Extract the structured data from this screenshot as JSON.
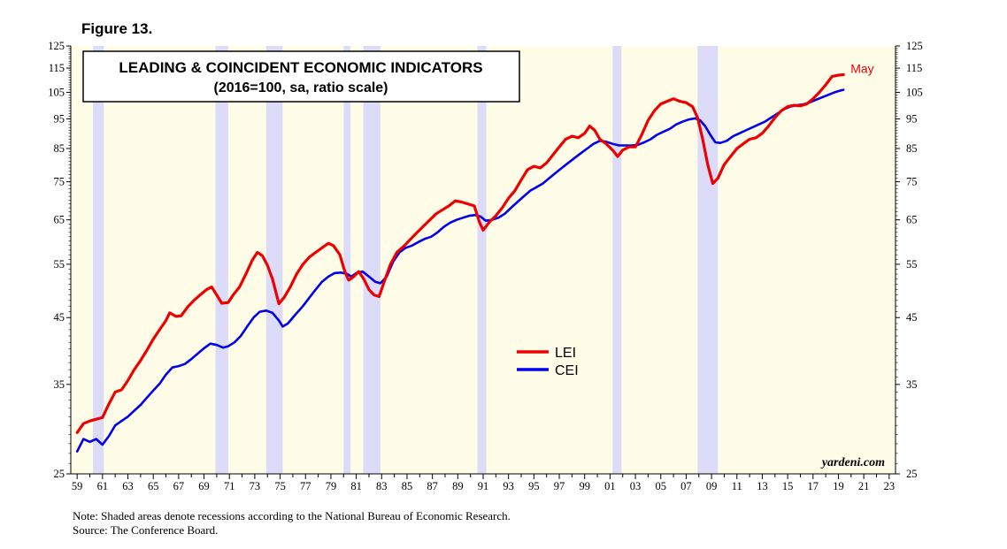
{
  "figure_label": "Figure 13.",
  "notes": {
    "line1": "Note: Shaded areas denote recessions according to the National Bureau of Economic Research.",
    "line2": "Source: The Conference Board."
  },
  "chart_data": {
    "type": "line",
    "title": "LEADING & COINCIDENT ECONOMIC INDICATORS",
    "subtitle": "(2016=100, sa, ratio scale)",
    "y_scale": "log",
    "ylim": [
      25,
      125
    ],
    "xlim": [
      1958.5,
      2023.5
    ],
    "y_ticks": [
      25,
      35,
      45,
      55,
      65,
      75,
      85,
      95,
      105,
      115,
      125
    ],
    "x_tick_labels": [
      "59",
      "61",
      "63",
      "65",
      "67",
      "69",
      "71",
      "73",
      "75",
      "77",
      "79",
      "81",
      "83",
      "85",
      "87",
      "89",
      "91",
      "93",
      "95",
      "97",
      "99",
      "01",
      "03",
      "05",
      "07",
      "09",
      "11",
      "13",
      "15",
      "17",
      "19",
      "21",
      "23"
    ],
    "recessions": [
      [
        1960.25,
        1961.1
      ],
      [
        1969.9,
        1970.9
      ],
      [
        1973.9,
        1975.2
      ],
      [
        1980.0,
        1980.55
      ],
      [
        1981.55,
        1982.9
      ],
      [
        1990.55,
        1991.25
      ],
      [
        2001.2,
        2001.9
      ],
      [
        2007.9,
        2009.5
      ]
    ],
    "series": [
      {
        "name": "LEI",
        "color": "#ee0000",
        "end_label": "May",
        "points": [
          [
            1959.0,
            29.2
          ],
          [
            1959.5,
            30.2
          ],
          [
            1960.0,
            30.5
          ],
          [
            1960.5,
            30.7
          ],
          [
            1961.0,
            30.9
          ],
          [
            1961.5,
            32.5
          ],
          [
            1962.0,
            34.0
          ],
          [
            1962.5,
            34.3
          ],
          [
            1963.0,
            35.5
          ],
          [
            1963.5,
            37.0
          ],
          [
            1964.0,
            38.3
          ],
          [
            1964.5,
            39.8
          ],
          [
            1965.0,
            41.5
          ],
          [
            1965.5,
            43.0
          ],
          [
            1966.0,
            44.5
          ],
          [
            1966.3,
            45.8
          ],
          [
            1966.8,
            45.2
          ],
          [
            1967.2,
            45.3
          ],
          [
            1967.7,
            46.8
          ],
          [
            1968.2,
            48.0
          ],
          [
            1968.7,
            49.0
          ],
          [
            1969.2,
            50.0
          ],
          [
            1969.6,
            50.5
          ],
          [
            1970.0,
            49.0
          ],
          [
            1970.4,
            47.5
          ],
          [
            1970.9,
            47.6
          ],
          [
            1971.3,
            49.0
          ],
          [
            1971.8,
            50.5
          ],
          [
            1972.3,
            53.0
          ],
          [
            1972.8,
            55.8
          ],
          [
            1973.2,
            57.5
          ],
          [
            1973.6,
            56.8
          ],
          [
            1974.0,
            54.8
          ],
          [
            1974.4,
            52.0
          ],
          [
            1974.9,
            47.4
          ],
          [
            1975.3,
            48.5
          ],
          [
            1975.8,
            50.5
          ],
          [
            1976.3,
            53.0
          ],
          [
            1976.8,
            55.0
          ],
          [
            1977.3,
            56.5
          ],
          [
            1977.8,
            57.5
          ],
          [
            1978.3,
            58.5
          ],
          [
            1978.8,
            59.5
          ],
          [
            1979.2,
            59.0
          ],
          [
            1979.7,
            57.0
          ],
          [
            1980.1,
            53.5
          ],
          [
            1980.4,
            51.8
          ],
          [
            1980.8,
            52.5
          ],
          [
            1981.2,
            53.5
          ],
          [
            1981.6,
            52.0
          ],
          [
            1982.0,
            50.0
          ],
          [
            1982.4,
            49.0
          ],
          [
            1982.8,
            48.7
          ],
          [
            1983.2,
            51.5
          ],
          [
            1983.7,
            55.0
          ],
          [
            1984.2,
            57.5
          ],
          [
            1984.8,
            59.0
          ],
          [
            1985.3,
            60.5
          ],
          [
            1985.8,
            62.0
          ],
          [
            1986.3,
            63.5
          ],
          [
            1986.8,
            65.0
          ],
          [
            1987.3,
            66.5
          ],
          [
            1987.8,
            67.5
          ],
          [
            1988.3,
            68.5
          ],
          [
            1988.8,
            69.8
          ],
          [
            1989.3,
            69.5
          ],
          [
            1989.8,
            69.0
          ],
          [
            1990.3,
            68.5
          ],
          [
            1990.7,
            64.5
          ],
          [
            1991.0,
            62.5
          ],
          [
            1991.5,
            64.5
          ],
          [
            1992.0,
            66.0
          ],
          [
            1992.5,
            68.0
          ],
          [
            1993.0,
            70.5
          ],
          [
            1993.5,
            72.5
          ],
          [
            1994.0,
            75.5
          ],
          [
            1994.5,
            78.5
          ],
          [
            1995.0,
            79.5
          ],
          [
            1995.5,
            79.0
          ],
          [
            1996.0,
            80.5
          ],
          [
            1996.5,
            83.0
          ],
          [
            1997.0,
            85.5
          ],
          [
            1997.5,
            88.0
          ],
          [
            1998.0,
            89.0
          ],
          [
            1998.5,
            88.5
          ],
          [
            1999.0,
            90.0
          ],
          [
            1999.4,
            92.5
          ],
          [
            1999.8,
            91.0
          ],
          [
            2000.2,
            88.0
          ],
          [
            2000.7,
            86.5
          ],
          [
            2001.2,
            84.5
          ],
          [
            2001.6,
            82.5
          ],
          [
            2002.0,
            84.5
          ],
          [
            2002.5,
            85.5
          ],
          [
            2003.0,
            85.5
          ],
          [
            2003.5,
            89.5
          ],
          [
            2004.0,
            94.5
          ],
          [
            2004.5,
            98.0
          ],
          [
            2005.0,
            100.5
          ],
          [
            2005.5,
            101.5
          ],
          [
            2006.0,
            102.5
          ],
          [
            2006.5,
            101.5
          ],
          [
            2007.0,
            101.0
          ],
          [
            2007.5,
            99.5
          ],
          [
            2007.9,
            95.5
          ],
          [
            2008.3,
            88.0
          ],
          [
            2008.7,
            80.0
          ],
          [
            2009.1,
            74.5
          ],
          [
            2009.5,
            76.0
          ],
          [
            2010.0,
            80.0
          ],
          [
            2010.5,
            82.5
          ],
          [
            2011.0,
            85.0
          ],
          [
            2011.5,
            86.5
          ],
          [
            2012.0,
            88.0
          ],
          [
            2012.5,
            88.5
          ],
          [
            2013.0,
            90.0
          ],
          [
            2013.5,
            92.5
          ],
          [
            2014.0,
            95.5
          ],
          [
            2014.5,
            98.0
          ],
          [
            2015.0,
            99.5
          ],
          [
            2015.5,
            100.0
          ],
          [
            2016.0,
            99.8
          ],
          [
            2016.5,
            100.5
          ],
          [
            2017.0,
            102.5
          ],
          [
            2017.5,
            105.0
          ],
          [
            2018.0,
            108.0
          ],
          [
            2018.5,
            111.5
          ],
          [
            2019.0,
            112.0
          ],
          [
            2019.4,
            112.2
          ]
        ]
      },
      {
        "name": "CEI",
        "color": "#0000ee",
        "end_label": "",
        "points": [
          [
            1959.0,
            27.2
          ],
          [
            1959.5,
            28.5
          ],
          [
            1960.0,
            28.2
          ],
          [
            1960.5,
            28.5
          ],
          [
            1961.0,
            27.9
          ],
          [
            1961.5,
            28.8
          ],
          [
            1962.0,
            30.0
          ],
          [
            1962.5,
            30.5
          ],
          [
            1963.0,
            31.0
          ],
          [
            1963.5,
            31.7
          ],
          [
            1964.0,
            32.4
          ],
          [
            1964.5,
            33.3
          ],
          [
            1965.0,
            34.2
          ],
          [
            1965.5,
            35.1
          ],
          [
            1966.0,
            36.3
          ],
          [
            1966.5,
            37.3
          ],
          [
            1967.0,
            37.5
          ],
          [
            1967.5,
            37.8
          ],
          [
            1968.0,
            38.5
          ],
          [
            1968.5,
            39.3
          ],
          [
            1969.0,
            40.1
          ],
          [
            1969.5,
            40.8
          ],
          [
            1970.0,
            40.6
          ],
          [
            1970.5,
            40.2
          ],
          [
            1970.9,
            40.4
          ],
          [
            1971.4,
            41.0
          ],
          [
            1971.9,
            42.0
          ],
          [
            1972.4,
            43.5
          ],
          [
            1972.9,
            45.0
          ],
          [
            1973.4,
            46.0
          ],
          [
            1973.9,
            46.2
          ],
          [
            1974.4,
            45.8
          ],
          [
            1974.9,
            44.5
          ],
          [
            1975.2,
            43.5
          ],
          [
            1975.6,
            44.0
          ],
          [
            1976.2,
            45.5
          ],
          [
            1976.8,
            47.0
          ],
          [
            1977.3,
            48.5
          ],
          [
            1977.8,
            50.0
          ],
          [
            1978.3,
            51.5
          ],
          [
            1978.8,
            52.5
          ],
          [
            1979.3,
            53.2
          ],
          [
            1979.8,
            53.3
          ],
          [
            1980.3,
            53.0
          ],
          [
            1980.6,
            52.5
          ],
          [
            1981.0,
            53.2
          ],
          [
            1981.5,
            53.5
          ],
          [
            1982.0,
            52.5
          ],
          [
            1982.5,
            51.5
          ],
          [
            1982.9,
            51.2
          ],
          [
            1983.4,
            52.5
          ],
          [
            1983.9,
            55.5
          ],
          [
            1984.4,
            57.5
          ],
          [
            1984.9,
            58.5
          ],
          [
            1985.4,
            59.0
          ],
          [
            1985.9,
            59.8
          ],
          [
            1986.4,
            60.5
          ],
          [
            1986.9,
            61.0
          ],
          [
            1987.4,
            62.0
          ],
          [
            1987.9,
            63.3
          ],
          [
            1988.4,
            64.3
          ],
          [
            1988.9,
            65.0
          ],
          [
            1989.4,
            65.5
          ],
          [
            1989.9,
            66.0
          ],
          [
            1990.4,
            66.2
          ],
          [
            1990.8,
            65.8
          ],
          [
            1991.2,
            64.8
          ],
          [
            1991.7,
            65.0
          ],
          [
            1992.2,
            65.5
          ],
          [
            1992.7,
            66.5
          ],
          [
            1993.2,
            68.0
          ],
          [
            1993.7,
            69.5
          ],
          [
            1994.2,
            71.0
          ],
          [
            1994.7,
            72.5
          ],
          [
            1995.2,
            73.5
          ],
          [
            1995.7,
            74.5
          ],
          [
            1996.2,
            76.0
          ],
          [
            1996.7,
            77.5
          ],
          [
            1997.2,
            79.0
          ],
          [
            1997.7,
            80.5
          ],
          [
            1998.2,
            82.0
          ],
          [
            1998.7,
            83.5
          ],
          [
            1999.2,
            85.0
          ],
          [
            1999.7,
            86.5
          ],
          [
            2000.2,
            87.5
          ],
          [
            2000.7,
            87.2
          ],
          [
            2001.2,
            86.5
          ],
          [
            2001.7,
            86.0
          ],
          [
            2002.2,
            86.0
          ],
          [
            2002.7,
            86.0
          ],
          [
            2003.2,
            86.2
          ],
          [
            2003.7,
            87.0
          ],
          [
            2004.2,
            88.0
          ],
          [
            2004.7,
            89.5
          ],
          [
            2005.2,
            90.5
          ],
          [
            2005.7,
            91.5
          ],
          [
            2006.2,
            93.0
          ],
          [
            2006.7,
            94.0
          ],
          [
            2007.2,
            94.8
          ],
          [
            2007.7,
            95.2
          ],
          [
            2008.1,
            94.5
          ],
          [
            2008.5,
            92.5
          ],
          [
            2008.9,
            89.5
          ],
          [
            2009.3,
            87.0
          ],
          [
            2009.7,
            86.8
          ],
          [
            2010.2,
            87.5
          ],
          [
            2010.7,
            89.0
          ],
          [
            2011.2,
            90.0
          ],
          [
            2011.7,
            91.0
          ],
          [
            2012.2,
            92.0
          ],
          [
            2012.7,
            93.0
          ],
          [
            2013.2,
            94.0
          ],
          [
            2013.7,
            95.5
          ],
          [
            2014.2,
            97.0
          ],
          [
            2014.7,
            98.5
          ],
          [
            2015.2,
            99.5
          ],
          [
            2015.7,
            100.0
          ],
          [
            2016.2,
            100.3
          ],
          [
            2016.7,
            101.0
          ],
          [
            2017.2,
            102.0
          ],
          [
            2017.7,
            103.0
          ],
          [
            2018.2,
            104.0
          ],
          [
            2018.7,
            105.0
          ],
          [
            2019.2,
            105.8
          ],
          [
            2019.4,
            106.0
          ]
        ]
      }
    ],
    "legend": [
      {
        "label": "LEI",
        "color": "#ee0000"
      },
      {
        "label": "CEI",
        "color": "#0000ee"
      }
    ],
    "legend_position": "center",
    "watermark": "yardeni.com",
    "grid": false
  }
}
